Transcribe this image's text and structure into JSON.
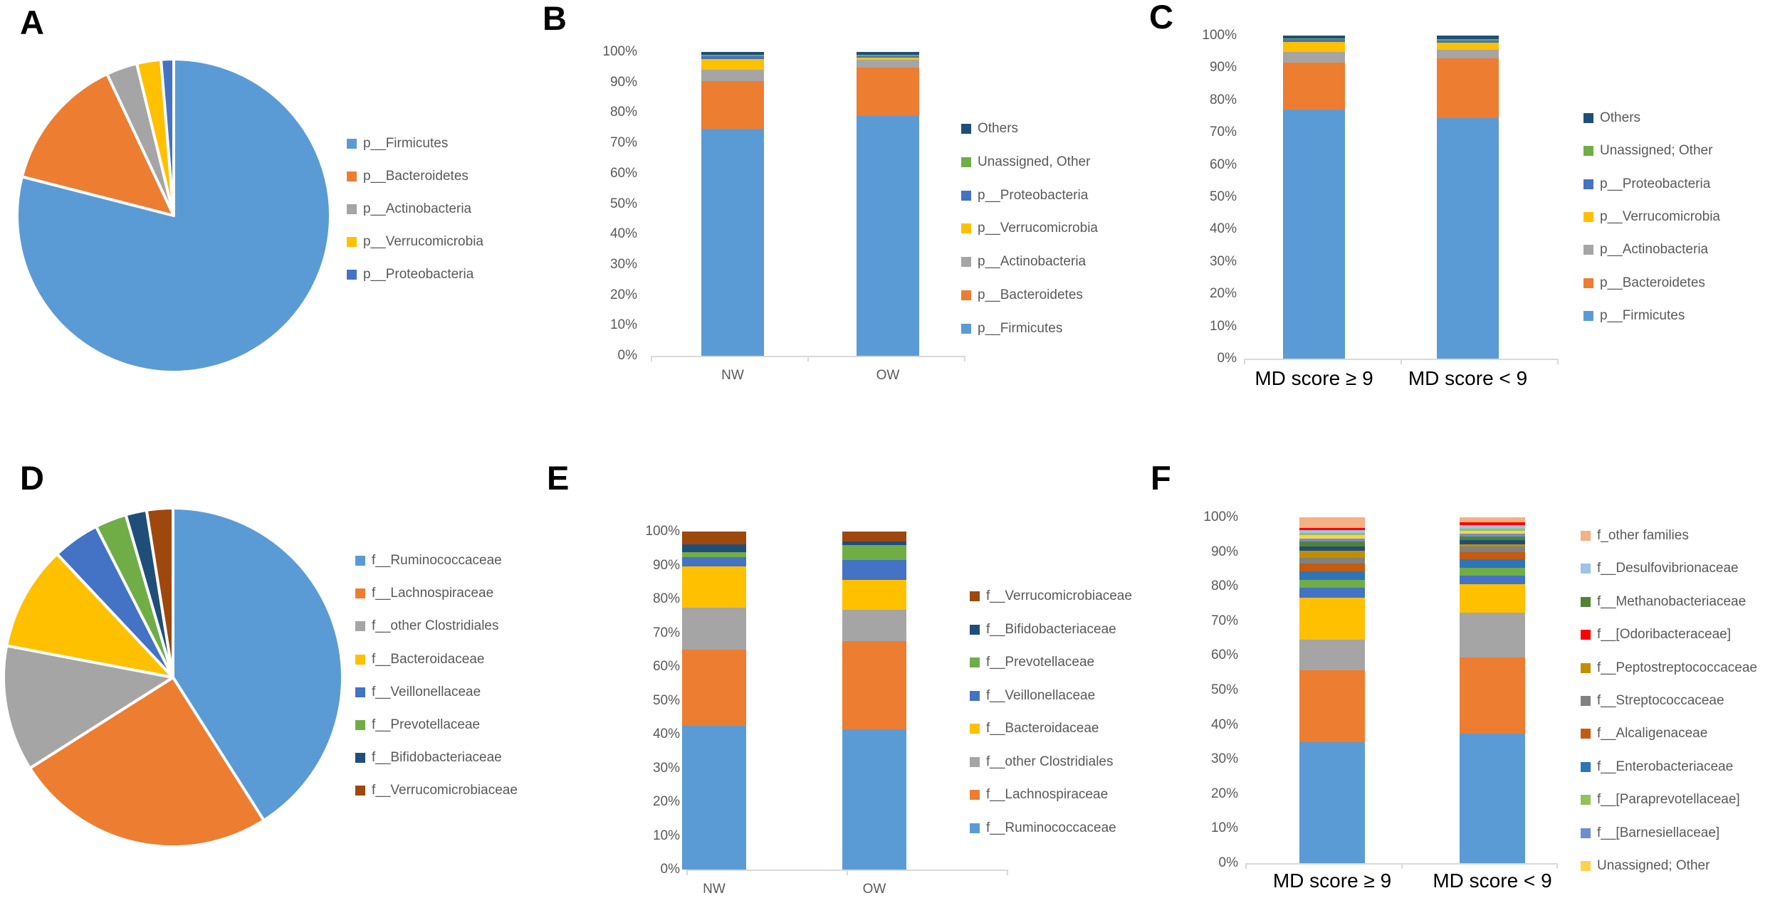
{
  "figure": {
    "background": "#FFFFFF"
  },
  "chart_data": [
    {
      "panel_label": "A",
      "type": "pie",
      "slices": [
        {
          "name": "p__Firmicutes",
          "value": 79.0,
          "color": "#5B9BD5"
        },
        {
          "name": "p__Bacteroidetes",
          "value": 14.0,
          "color": "#ED7D31"
        },
        {
          "name": "p__Actinobacteria",
          "value": 3.2,
          "color": "#A5A5A5"
        },
        {
          "name": "p__Verrucomicrobia",
          "value": 2.5,
          "color": "#FFC000"
        },
        {
          "name": "p__Proteobacteria",
          "value": 1.3,
          "color": "#4472C4"
        }
      ],
      "legend": [
        {
          "label": "p__Firmicutes",
          "color": "#5B9BD5"
        },
        {
          "label": "p__Bacteroidetes",
          "color": "#ED7D31"
        },
        {
          "label": "p__Actinobacteria",
          "color": "#A5A5A5"
        },
        {
          "label": "p__Verrucomicrobia",
          "color": "#FFC000"
        },
        {
          "label": "p__Proteobacteria",
          "color": "#4472C4"
        }
      ]
    },
    {
      "panel_label": "B",
      "type": "stacked_bar",
      "categories": [
        "NW",
        "OW"
      ],
      "x_label_style": "plain",
      "y_ticks": [
        "100%",
        "90%",
        "80%",
        "70%",
        "60%",
        "50%",
        "40%",
        "30%",
        "20%",
        "10%",
        "0%"
      ],
      "ylim": [
        0,
        100
      ],
      "series": [
        {
          "name": "p__Firmicutes",
          "color": "#5B9BD5",
          "values": [
            74.8,
            79.0
          ]
        },
        {
          "name": "p__Bacteroidetes",
          "color": "#ED7D31",
          "values": [
            15.7,
            15.8
          ]
        },
        {
          "name": "p__Actinobacteria",
          "color": "#A5A5A5",
          "values": [
            3.7,
            2.7
          ]
        },
        {
          "name": "p__Verrucomicrobia",
          "color": "#FFC000",
          "values": [
            3.4,
            0.6
          ]
        },
        {
          "name": "p__Proteobacteria",
          "color": "#4472C4",
          "values": [
            0.9,
            0.4
          ]
        },
        {
          "name": "Unassigned, Other",
          "color": "#70AD47",
          "values": [
            0.5,
            0.5
          ]
        },
        {
          "name": "Others",
          "color": "#1F4E79",
          "values": [
            1.0,
            1.0
          ]
        }
      ],
      "legend": [
        {
          "label": "Others",
          "color": "#1F4E79"
        },
        {
          "label": "Unassigned, Other",
          "color": "#70AD47"
        },
        {
          "label": "p__Proteobacteria",
          "color": "#4472C4"
        },
        {
          "label": "p__Verrucomicrobia",
          "color": "#FFC000"
        },
        {
          "label": "p__Actinobacteria",
          "color": "#A5A5A5"
        },
        {
          "label": "p__Bacteroidetes",
          "color": "#ED7D31"
        },
        {
          "label": "p__Firmicutes",
          "color": "#5B9BD5"
        }
      ]
    },
    {
      "panel_label": "C",
      "type": "stacked_bar",
      "categories": [
        "MD score ≥ 9",
        "MD score < 9"
      ],
      "x_label_style": "big",
      "y_ticks": [
        "100%",
        "90%",
        "80%",
        "70%",
        "60%",
        "50%",
        "40%",
        "30%",
        "20%",
        "10%",
        "0%"
      ],
      "ylim": [
        0,
        100
      ],
      "series": [
        {
          "name": "p__Firmicutes",
          "color": "#5B9BD5",
          "values": [
            77.1,
            74.4
          ]
        },
        {
          "name": "p__Bacteroidetes",
          "color": "#ED7D31",
          "values": [
            14.5,
            18.6
          ]
        },
        {
          "name": "p__Actinobacteria",
          "color": "#A5A5A5",
          "values": [
            3.4,
            2.7
          ]
        },
        {
          "name": "p__Verrucomicrobia",
          "color": "#FFC000",
          "values": [
            3.0,
            2.2
          ]
        },
        {
          "name": "p__Proteobacteria",
          "color": "#4472C4",
          "values": [
            0.9,
            0.5
          ]
        },
        {
          "name": "Unassigned; Other",
          "color": "#70AD47",
          "values": [
            0.3,
            0.6
          ]
        },
        {
          "name": "Others",
          "color": "#1F4E79",
          "values": [
            0.8,
            1.0
          ]
        }
      ],
      "legend": [
        {
          "label": "Others",
          "color": "#1F4E79"
        },
        {
          "label": "Unassigned; Other",
          "color": "#70AD47"
        },
        {
          "label": "p__Proteobacteria",
          "color": "#4472C4"
        },
        {
          "label": "p__Verrucomicrobia",
          "color": "#FFC000"
        },
        {
          "label": "p__Actinobacteria",
          "color": "#A5A5A5"
        },
        {
          "label": "p__Bacteroidetes",
          "color": "#ED7D31"
        },
        {
          "label": "p__Firmicutes",
          "color": "#5B9BD5"
        }
      ]
    },
    {
      "panel_label": "D",
      "type": "pie",
      "slices": [
        {
          "name": "f__Ruminococcaceae",
          "value": 41.0,
          "color": "#5B9BD5"
        },
        {
          "name": "f__Lachnospiraceae",
          "value": 25.0,
          "color": "#ED7D31"
        },
        {
          "name": "f__other Clostridiales",
          "value": 12.0,
          "color": "#A5A5A5"
        },
        {
          "name": "f__Bacteroidaceae",
          "value": 10.0,
          "color": "#FFC000"
        },
        {
          "name": "f__Veillonellaceae",
          "value": 4.5,
          "color": "#4472C4"
        },
        {
          "name": "f__Prevotellaceae",
          "value": 3.0,
          "color": "#70AD47"
        },
        {
          "name": "f__Bifidobacteriaceae",
          "value": 2.0,
          "color": "#1F4E79"
        },
        {
          "name": "f__Verrucomicrobiaceae",
          "value": 2.5,
          "color": "#9E480E"
        }
      ],
      "legend": [
        {
          "label": "f__Ruminococcaceae",
          "color": "#5B9BD5"
        },
        {
          "label": "f__Lachnospiraceae",
          "color": "#ED7D31"
        },
        {
          "label": "f__other Clostridiales",
          "color": "#A5A5A5"
        },
        {
          "label": "f__Bacteroidaceae",
          "color": "#FFC000"
        },
        {
          "label": "f__Veillonellaceae",
          "color": "#4472C4"
        },
        {
          "label": "f__Prevotellaceae",
          "color": "#70AD47"
        },
        {
          "label": "f__Bifidobacteriaceae",
          "color": "#1F4E79"
        },
        {
          "label": "f__Verrucomicrobiaceae",
          "color": "#9E480E"
        }
      ]
    },
    {
      "panel_label": "E",
      "type": "stacked_bar",
      "categories": [
        "NW",
        "OW"
      ],
      "x_label_style": "plain",
      "y_ticks": [
        "100%",
        "90%",
        "80%",
        "70%",
        "60%",
        "50%",
        "40%",
        "30%",
        "20%",
        "10%",
        "0%"
      ],
      "ylim": [
        0,
        100
      ],
      "series": [
        {
          "name": "f__Ruminococcaceae",
          "color": "#5B9BD5",
          "values": [
            42.5,
            41.5
          ]
        },
        {
          "name": "f__Lachnospiraceae",
          "color": "#ED7D31",
          "values": [
            22.5,
            26.0
          ]
        },
        {
          "name": "f__other Clostridiales",
          "color": "#A5A5A5",
          "values": [
            12.4,
            9.4
          ]
        },
        {
          "name": "f__Bacteroidaceae",
          "color": "#FFC000",
          "values": [
            12.2,
            8.8
          ]
        },
        {
          "name": "f__Veillonellaceae",
          "color": "#4472C4",
          "values": [
            2.8,
            5.9
          ]
        },
        {
          "name": "f__Prevotellaceae",
          "color": "#70AD47",
          "values": [
            1.5,
            4.4
          ]
        },
        {
          "name": "f__Bifidobacteriaceae",
          "color": "#1F4E79",
          "values": [
            2.3,
            1.1
          ]
        },
        {
          "name": "f__Verrucomicrobiaceae",
          "color": "#9E480E",
          "values": [
            3.8,
            2.9
          ]
        }
      ],
      "legend": [
        {
          "label": "f__Verrucomicrobiaceae",
          "color": "#9E480E"
        },
        {
          "label": "f__Bifidobacteriaceae",
          "color": "#1F4E79"
        },
        {
          "label": "f__Prevotellaceae",
          "color": "#70AD47"
        },
        {
          "label": "f__Veillonellaceae",
          "color": "#4472C4"
        },
        {
          "label": "f__Bacteroidaceae",
          "color": "#FFC000"
        },
        {
          "label": "f__other Clostridiales",
          "color": "#A5A5A5"
        },
        {
          "label": "f__Lachnospiraceae",
          "color": "#ED7D31"
        },
        {
          "label": "f__Ruminococcaceae",
          "color": "#5B9BD5"
        }
      ]
    },
    {
      "panel_label": "F",
      "type": "stacked_bar",
      "categories": [
        "MD score ≥ 9",
        "MD score < 9"
      ],
      "x_label_style": "big",
      "y_ticks": [
        "100%",
        "90%",
        "80%",
        "70%",
        "60%",
        "50%",
        "40%",
        "30%",
        "20%",
        "10%",
        "0%"
      ],
      "ylim": [
        0,
        100
      ],
      "series": [
        {
          "name": "f__Ruminococcaceae",
          "color": "#5B9BD5",
          "values": [
            35.0,
            37.4
          ]
        },
        {
          "name": "f__Lachnospiraceae",
          "color": "#ED7D31",
          "values": [
            20.7,
            22.0
          ]
        },
        {
          "name": "f__other Clostridiales",
          "color": "#A5A5A5",
          "values": [
            9.0,
            13.0
          ]
        },
        {
          "name": "f__Bacteroidaceae",
          "color": "#FFC000",
          "values": [
            12.0,
            8.3
          ]
        },
        {
          "name": "f__Veillonellaceae",
          "color": "#4472C4",
          "values": [
            3.0,
            2.5
          ]
        },
        {
          "name": "f__Prevotellaceae",
          "color": "#70AD47",
          "values": [
            2.2,
            2.3
          ]
        },
        {
          "name": "f__Enterobacteriaceae",
          "color": "#2E75B6",
          "values": [
            2.5,
            2.3
          ]
        },
        {
          "name": "f__Alcaligenaceae",
          "color": "#C55A11",
          "values": [
            2.3,
            2.1
          ]
        },
        {
          "name": "f__Streptococcaceae",
          "color": "#808080",
          "values": [
            1.5,
            1.7
          ]
        },
        {
          "name": "f__Peptostreptococcaceae",
          "color": "#BF8F00",
          "values": [
            2.2,
            0.6
          ]
        },
        {
          "name": "f__Bifidobacteriaceae",
          "color": "#1F4E79",
          "values": [
            1.2,
            1.3
          ]
        },
        {
          "name": "f__Methanobacteriaceae",
          "color": "#548235",
          "values": [
            1.5,
            1.0
          ]
        },
        {
          "name": "f__[Barnesiellaceae]",
          "color": "#6D8FD0",
          "values": [
            0.8,
            0.8
          ]
        },
        {
          "name": "Unassigned; Other",
          "color": "#FFD24D",
          "values": [
            0.9,
            0.8
          ]
        },
        {
          "name": "f__[Paraprevotellaceae]",
          "color": "#94C159",
          "values": [
            0.8,
            0.7
          ]
        },
        {
          "name": "f__Desulfovibrionaceae",
          "color": "#9DC3E6",
          "values": [
            0.8,
            1.0
          ]
        },
        {
          "name": "f__[Odoribacteraceae]",
          "color": "#FF0000",
          "values": [
            0.6,
            0.7
          ]
        },
        {
          "name": "f_other families",
          "color": "#F4B183",
          "values": [
            3.0,
            1.5
          ]
        }
      ],
      "legend": [
        {
          "label": "f_other families",
          "color": "#F4B183"
        },
        {
          "label": "f__Desulfovibrionaceae",
          "color": "#9DC3E6"
        },
        {
          "label": "f__Methanobacteriaceae",
          "color": "#548235"
        },
        {
          "label": "f__[Odoribacteraceae]",
          "color": "#FF0000"
        },
        {
          "label": "f__Peptostreptococcaceae",
          "color": "#BF8F00"
        },
        {
          "label": "f__Streptococcaceae",
          "color": "#808080"
        },
        {
          "label": "f__Alcaligenaceae",
          "color": "#C55A11"
        },
        {
          "label": "f__Enterobacteriaceae",
          "color": "#2E75B6"
        },
        {
          "label": "f__[Paraprevotellaceae]",
          "color": "#94C159"
        },
        {
          "label": "f__[Barnesiellaceae]",
          "color": "#6D8FD0"
        },
        {
          "label": "Unassigned; Other",
          "color": "#FFD24D"
        }
      ]
    }
  ]
}
